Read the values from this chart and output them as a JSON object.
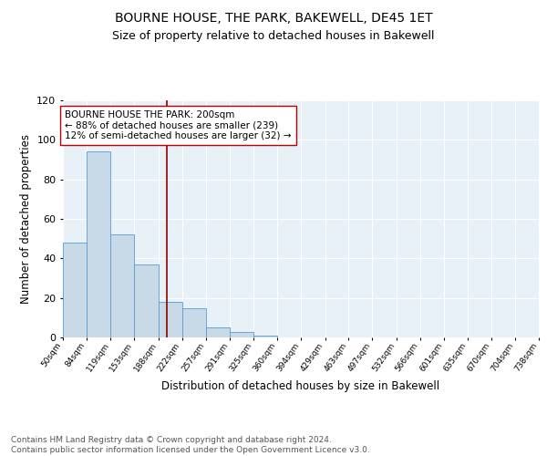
{
  "title": "BOURNE HOUSE, THE PARK, BAKEWELL, DE45 1ET",
  "subtitle": "Size of property relative to detached houses in Bakewell",
  "xlabel": "Distribution of detached houses by size in Bakewell",
  "ylabel": "Number of detached properties",
  "bar_edges": [
    50,
    84,
    119,
    153,
    188,
    222,
    257,
    291,
    325,
    360,
    394,
    429,
    463,
    497,
    532,
    566,
    601,
    635,
    670,
    704,
    738
  ],
  "bar_heights": [
    48,
    94,
    52,
    37,
    18,
    15,
    5,
    3,
    1,
    0,
    0,
    0,
    0,
    0,
    0,
    0,
    0,
    0,
    0,
    0
  ],
  "bar_color": "#c8d9e8",
  "bar_edge_color": "#5b9bd5",
  "grid_color": "#ffffff",
  "bg_color": "#e8f0f8",
  "vline_x": 200,
  "vline_color": "#8b0000",
  "annotation_text": "BOURNE HOUSE THE PARK: 200sqm\n← 88% of detached houses are smaller (239)\n12% of semi-detached houses are larger (32) →",
  "annotation_box_color": "#ffffff",
  "annotation_box_edge": "#c00000",
  "ylim": [
    0,
    120
  ],
  "yticks": [
    0,
    20,
    40,
    60,
    80,
    100,
    120
  ],
  "tick_labels": [
    "50sqm",
    "84sqm",
    "119sqm",
    "153sqm",
    "188sqm",
    "222sqm",
    "257sqm",
    "291sqm",
    "325sqm",
    "360sqm",
    "394sqm",
    "429sqm",
    "463sqm",
    "497sqm",
    "532sqm",
    "566sqm",
    "601sqm",
    "635sqm",
    "670sqm",
    "704sqm",
    "738sqm"
  ],
  "footer": "Contains HM Land Registry data © Crown copyright and database right 2024.\nContains public sector information licensed under the Open Government Licence v3.0.",
  "title_fontsize": 10,
  "subtitle_fontsize": 9,
  "xlabel_fontsize": 8.5,
  "ylabel_fontsize": 8.5,
  "footer_fontsize": 6.5,
  "annotation_fontsize": 7.5,
  "tick_fontsize": 6.5
}
